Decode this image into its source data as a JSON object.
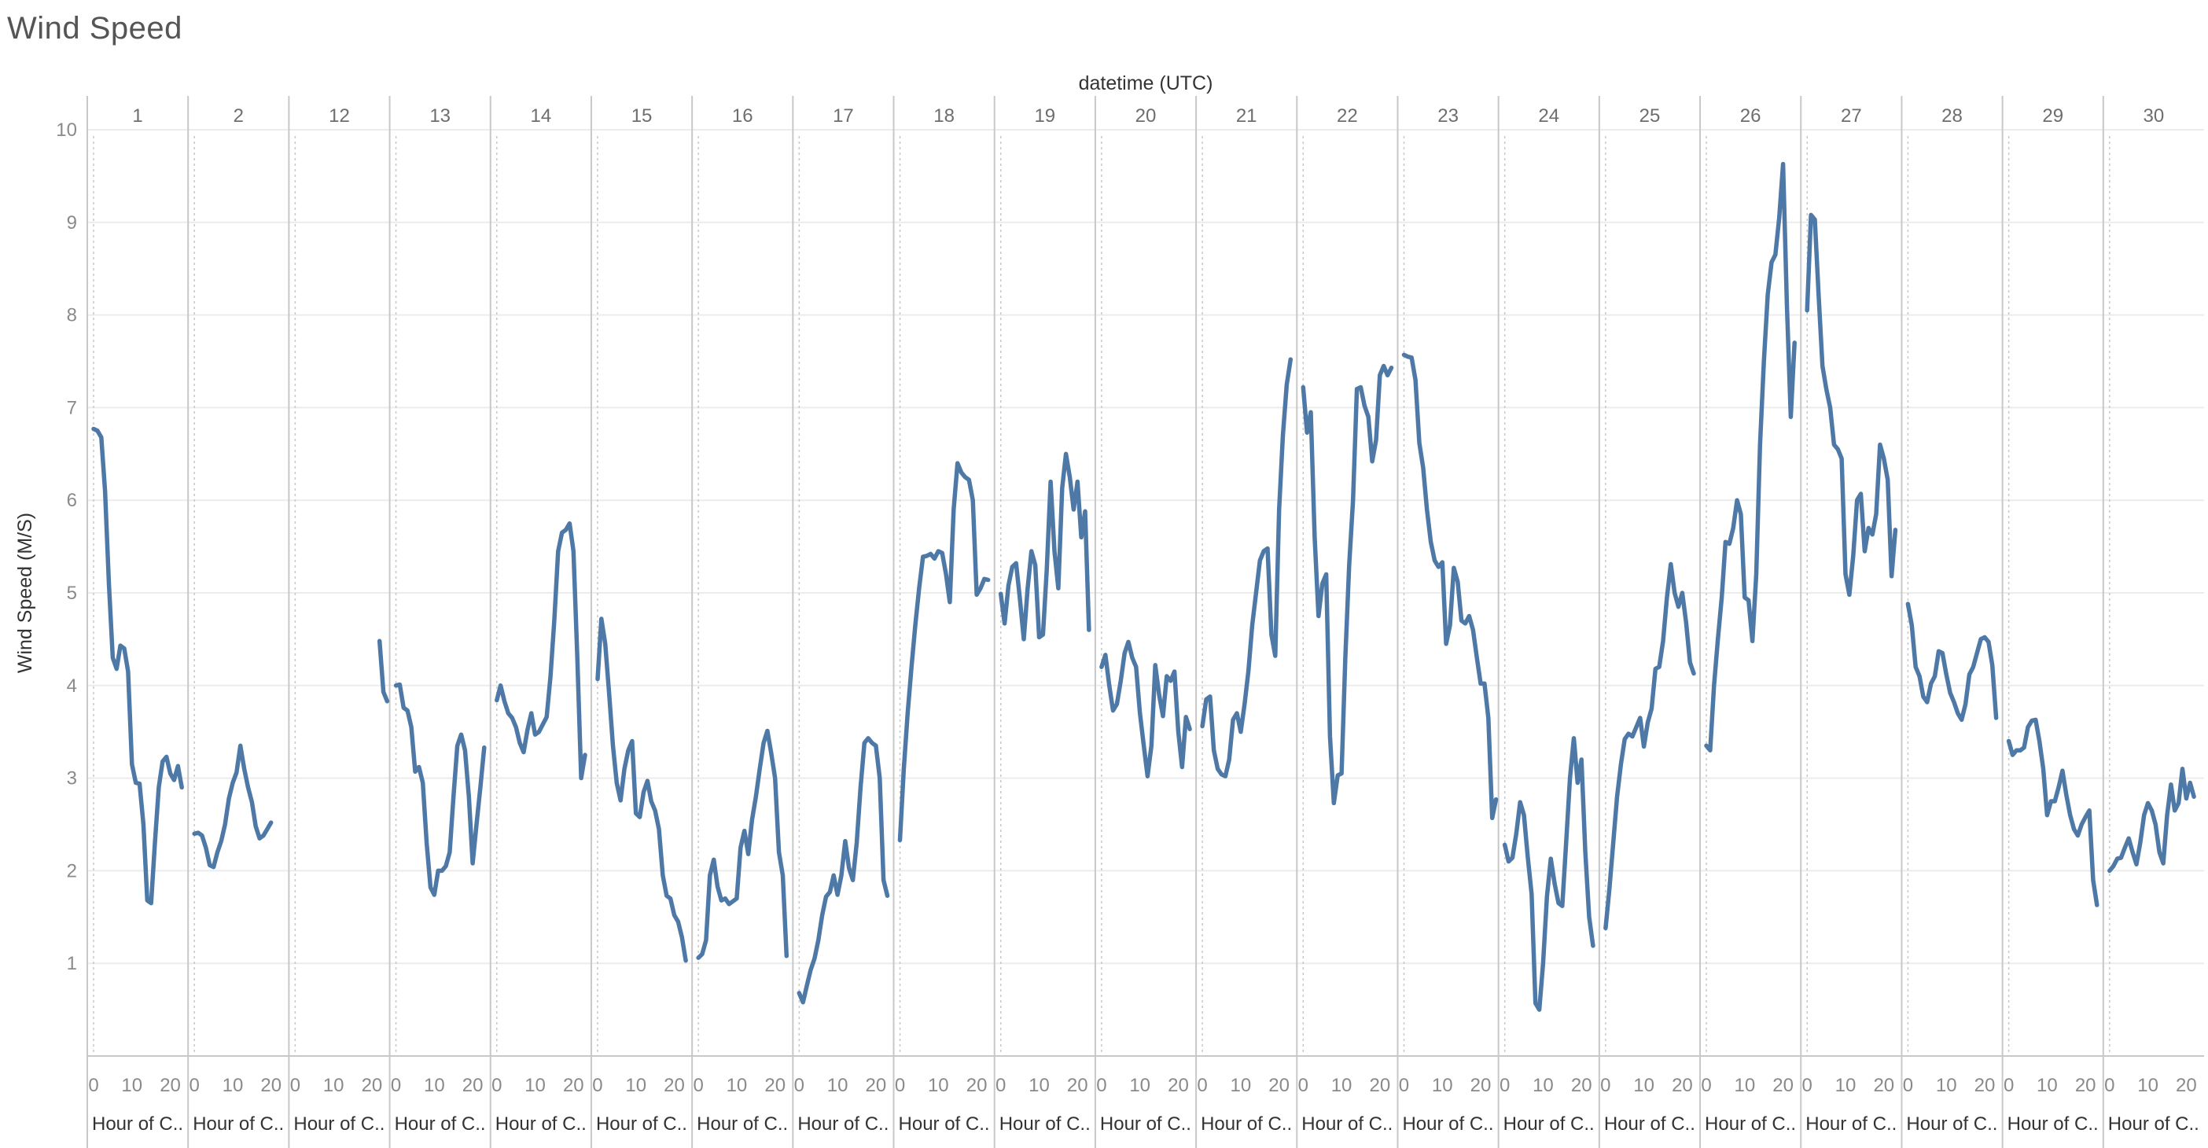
{
  "title": "Wind Speed",
  "chart_data": {
    "type": "line",
    "title": "Wind Speed",
    "column_header": "datetime (UTC)",
    "ylabel": "Wind Speed (M/S)",
    "ylim": [
      0,
      10
    ],
    "yticks": [
      1,
      2,
      3,
      4,
      5,
      6,
      7,
      8,
      9,
      10
    ],
    "xlabel": "Hour of C..",
    "xlim": [
      0,
      23
    ],
    "xticks": [
      0,
      10,
      20
    ],
    "line_color": "#4e79a7",
    "panels": [
      {
        "day": "1",
        "start": 0,
        "values": [
          6.77,
          6.75,
          6.68,
          6.1,
          5.1,
          4.3,
          4.18,
          4.43,
          4.4,
          4.15,
          3.15,
          2.95,
          2.94,
          2.5,
          1.68,
          1.65,
          2.3,
          2.9,
          3.18,
          3.23,
          3.05,
          2.98,
          3.13,
          2.9
        ]
      },
      {
        "day": "2",
        "start": 0,
        "values": [
          2.4,
          2.41,
          2.38,
          2.25,
          2.06,
          2.04,
          2.2,
          2.32,
          2.5,
          2.78,
          2.95,
          3.06,
          3.35,
          3.1,
          2.9,
          2.74,
          2.48,
          2.35,
          2.38,
          2.45,
          2.52
        ]
      },
      {
        "day": "12",
        "start": 22,
        "values": [
          4.48,
          3.93,
          3.83
        ]
      },
      {
        "day": "13",
        "start": 0,
        "values": [
          4.0,
          4.01,
          3.76,
          3.73,
          3.55,
          3.07,
          3.12,
          2.95,
          2.3,
          1.82,
          1.74,
          2.0,
          2.0,
          2.05,
          2.2,
          2.8,
          3.35,
          3.47,
          3.3,
          2.8,
          2.08,
          2.5,
          2.9,
          3.33
        ]
      },
      {
        "day": "14",
        "start": 0,
        "values": [
          3.84,
          4.0,
          3.83,
          3.7,
          3.65,
          3.55,
          3.38,
          3.28,
          3.52,
          3.7,
          3.47,
          3.5,
          3.58,
          3.66,
          4.1,
          4.7,
          5.45,
          5.65,
          5.68,
          5.75,
          5.45,
          4.3,
          3.0,
          3.25
        ]
      },
      {
        "day": "15",
        "start": 0,
        "values": [
          4.07,
          4.72,
          4.45,
          3.92,
          3.35,
          2.95,
          2.76,
          3.1,
          3.3,
          3.4,
          2.62,
          2.58,
          2.85,
          2.97,
          2.75,
          2.65,
          2.45,
          1.95,
          1.73,
          1.7,
          1.52,
          1.45,
          1.28,
          1.03
        ]
      },
      {
        "day": "16",
        "start": 0,
        "values": [
          1.06,
          1.1,
          1.25,
          1.95,
          2.12,
          1.83,
          1.68,
          1.7,
          1.64,
          1.67,
          1.7,
          2.25,
          2.43,
          2.18,
          2.55,
          2.8,
          3.1,
          3.38,
          3.51,
          3.27,
          3.0,
          2.2,
          1.95,
          1.08
        ]
      },
      {
        "day": "17",
        "start": 0,
        "values": [
          0.68,
          0.58,
          0.76,
          0.93,
          1.05,
          1.25,
          1.52,
          1.72,
          1.77,
          1.95,
          1.74,
          1.95,
          2.32,
          2.03,
          1.9,
          2.3,
          2.9,
          3.38,
          3.43,
          3.38,
          3.35,
          3.0,
          1.9,
          1.73
        ]
      },
      {
        "day": "18",
        "start": 0,
        "values": [
          2.33,
          3.1,
          3.7,
          4.2,
          4.65,
          5.05,
          5.39,
          5.4,
          5.42,
          5.37,
          5.45,
          5.43,
          5.2,
          4.9,
          5.9,
          6.4,
          6.3,
          6.25,
          6.22,
          6.0,
          4.98,
          5.05,
          5.15,
          5.14
        ]
      },
      {
        "day": "19",
        "start": 0,
        "values": [
          4.99,
          4.67,
          5.08,
          5.28,
          5.32,
          4.93,
          4.5,
          5.05,
          5.45,
          5.3,
          4.52,
          4.55,
          5.25,
          6.2,
          5.45,
          5.05,
          6.13,
          6.5,
          6.25,
          5.9,
          6.2,
          5.6,
          5.88,
          4.6
        ]
      },
      {
        "day": "20",
        "start": 0,
        "values": [
          4.2,
          4.33,
          4.0,
          3.73,
          3.8,
          4.05,
          4.35,
          4.47,
          4.3,
          4.2,
          3.7,
          3.35,
          3.02,
          3.35,
          4.22,
          3.9,
          3.67,
          4.1,
          4.05,
          4.15,
          3.5,
          3.12,
          3.66,
          3.53
        ]
      },
      {
        "day": "21",
        "start": 0,
        "values": [
          3.56,
          3.85,
          3.88,
          3.3,
          3.1,
          3.04,
          3.02,
          3.2,
          3.63,
          3.7,
          3.5,
          3.8,
          4.15,
          4.65,
          5.0,
          5.35,
          5.45,
          5.48,
          4.55,
          4.32,
          5.9,
          6.7,
          7.25,
          7.52
        ]
      },
      {
        "day": "22",
        "start": 0,
        "values": [
          7.22,
          6.73,
          6.95,
          5.6,
          4.75,
          5.1,
          5.2,
          3.45,
          2.73,
          3.03,
          3.05,
          4.3,
          5.3,
          6.0,
          7.2,
          7.22,
          7.02,
          6.9,
          6.42,
          6.65,
          7.35,
          7.45,
          7.35,
          7.43
        ]
      },
      {
        "day": "23",
        "start": 0,
        "values": [
          7.57,
          7.55,
          7.54,
          7.3,
          6.62,
          6.35,
          5.9,
          5.55,
          5.35,
          5.28,
          5.33,
          4.45,
          4.65,
          5.27,
          5.12,
          4.7,
          4.67,
          4.75,
          4.6,
          4.3,
          4.02,
          4.02,
          3.65,
          2.57,
          2.77
        ]
      },
      {
        "day": "24",
        "start": 0,
        "values": [
          2.28,
          2.1,
          2.14,
          2.4,
          2.74,
          2.6,
          2.15,
          1.75,
          0.57,
          0.5,
          1.0,
          1.72,
          2.13,
          1.86,
          1.65,
          1.62,
          2.3,
          3.0,
          3.43,
          2.95,
          3.2,
          2.2,
          1.5,
          1.19
        ]
      },
      {
        "day": "25",
        "start": 0,
        "values": [
          1.38,
          1.8,
          2.3,
          2.8,
          3.15,
          3.42,
          3.48,
          3.45,
          3.55,
          3.65,
          3.34,
          3.6,
          3.75,
          4.18,
          4.2,
          4.48,
          4.95,
          5.31,
          5.0,
          4.85,
          5.0,
          4.68,
          4.25,
          4.13
        ]
      },
      {
        "day": "26",
        "start": 0,
        "values": [
          3.35,
          3.3,
          4.0,
          4.5,
          4.95,
          5.55,
          5.53,
          5.7,
          6.0,
          5.85,
          4.95,
          4.92,
          4.48,
          5.2,
          6.6,
          7.5,
          8.22,
          8.57,
          8.65,
          9.05,
          9.63,
          8.1,
          6.9,
          7.7
        ]
      },
      {
        "day": "27",
        "start": 0,
        "values": [
          8.05,
          9.08,
          9.03,
          8.2,
          7.45,
          7.2,
          7.0,
          6.6,
          6.55,
          6.45,
          5.2,
          4.98,
          5.4,
          6.0,
          6.07,
          5.45,
          5.7,
          5.63,
          5.85,
          6.6,
          6.45,
          6.22,
          5.18,
          5.68
        ]
      },
      {
        "day": "28",
        "start": 0,
        "values": [
          4.88,
          4.65,
          4.2,
          4.1,
          3.88,
          3.82,
          4.02,
          4.1,
          4.37,
          4.35,
          4.12,
          3.92,
          3.82,
          3.7,
          3.63,
          3.8,
          4.12,
          4.2,
          4.35,
          4.5,
          4.52,
          4.47,
          4.22,
          3.65
        ]
      },
      {
        "day": "29",
        "start": 0,
        "values": [
          3.4,
          3.25,
          3.3,
          3.3,
          3.33,
          3.55,
          3.62,
          3.63,
          3.4,
          3.1,
          2.6,
          2.75,
          2.75,
          2.9,
          3.08,
          2.82,
          2.6,
          2.45,
          2.38,
          2.5,
          2.58,
          2.65,
          1.9,
          1.63
        ]
      },
      {
        "day": "30",
        "start": 0,
        "values": [
          2.0,
          2.05,
          2.13,
          2.14,
          2.25,
          2.35,
          2.2,
          2.07,
          2.3,
          2.6,
          2.73,
          2.65,
          2.5,
          2.2,
          2.08,
          2.6,
          2.93,
          2.65,
          2.73,
          3.1,
          2.78,
          2.95,
          2.8
        ]
      }
    ]
  }
}
